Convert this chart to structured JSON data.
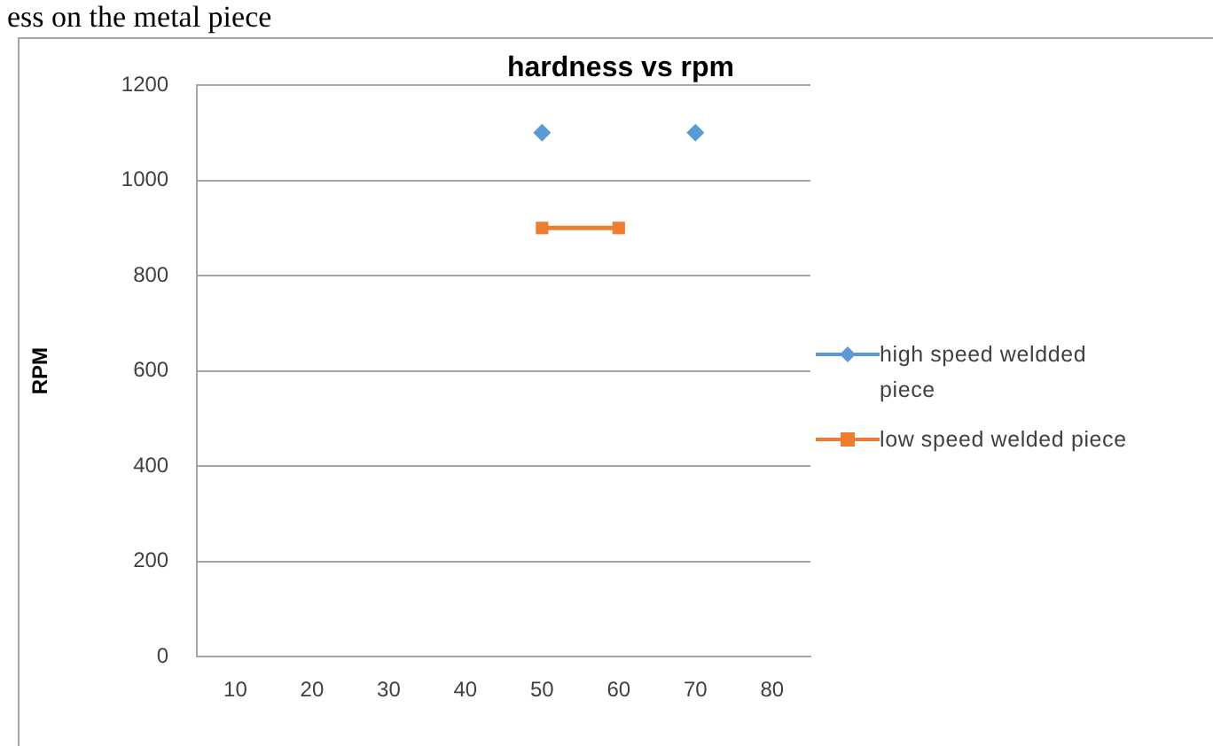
{
  "chart_data": {
    "type": "line",
    "title": "hardness vs rpm",
    "ylabel": "RPM",
    "annotations": [
      "ess on the metal piece"
    ],
    "categories": [
      "10",
      "20",
      "30",
      "40",
      "50",
      "60",
      "70",
      "80"
    ],
    "series": [
      {
        "name": "high speed weldded piece",
        "type": "scatter",
        "color": "#5b9bd5",
        "marker": "diamond",
        "values": [
          null,
          null,
          null,
          null,
          1100,
          null,
          1100,
          null
        ]
      },
      {
        "name": "low speed welded piece",
        "color": "#ed7d31",
        "marker": "square",
        "values": [
          null,
          null,
          null,
          null,
          900,
          900,
          null,
          null
        ]
      }
    ],
    "ylim": [
      0,
      1200
    ],
    "yticks": [
      0,
      200,
      400,
      600,
      800,
      1000,
      1200
    ],
    "grid": "y",
    "legend": "right"
  }
}
